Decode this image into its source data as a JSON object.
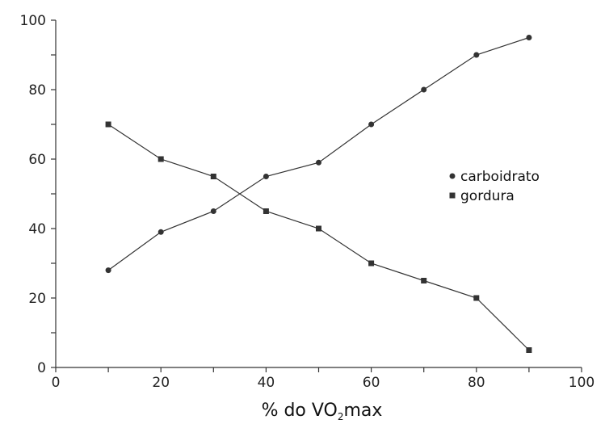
{
  "chart_data": {
    "type": "line",
    "title": "",
    "xlabel": {
      "main": "% do VO",
      "sub": "2",
      "tail": "max"
    },
    "ylabel": "",
    "xlim": [
      0,
      100
    ],
    "ylim": [
      0,
      100
    ],
    "xticks": [
      0,
      20,
      40,
      60,
      80,
      100
    ],
    "yticks": [
      0,
      20,
      40,
      60,
      80,
      100
    ],
    "x_minor_step": 10,
    "y_minor_step": 10,
    "grid": false,
    "legend_position": "center-right",
    "series": [
      {
        "name": "carboidrato",
        "marker": "circle",
        "color": "#333333",
        "x": [
          10,
          20,
          30,
          40,
          50,
          60,
          70,
          80,
          90
        ],
        "y": [
          28,
          39,
          45,
          55,
          59,
          70,
          80,
          90,
          95
        ]
      },
      {
        "name": "gordura",
        "marker": "square",
        "color": "#333333",
        "x": [
          10,
          20,
          30,
          40,
          50,
          60,
          70,
          80,
          90
        ],
        "y": [
          70,
          60,
          55,
          45,
          40,
          30,
          25,
          20,
          5
        ]
      }
    ]
  }
}
